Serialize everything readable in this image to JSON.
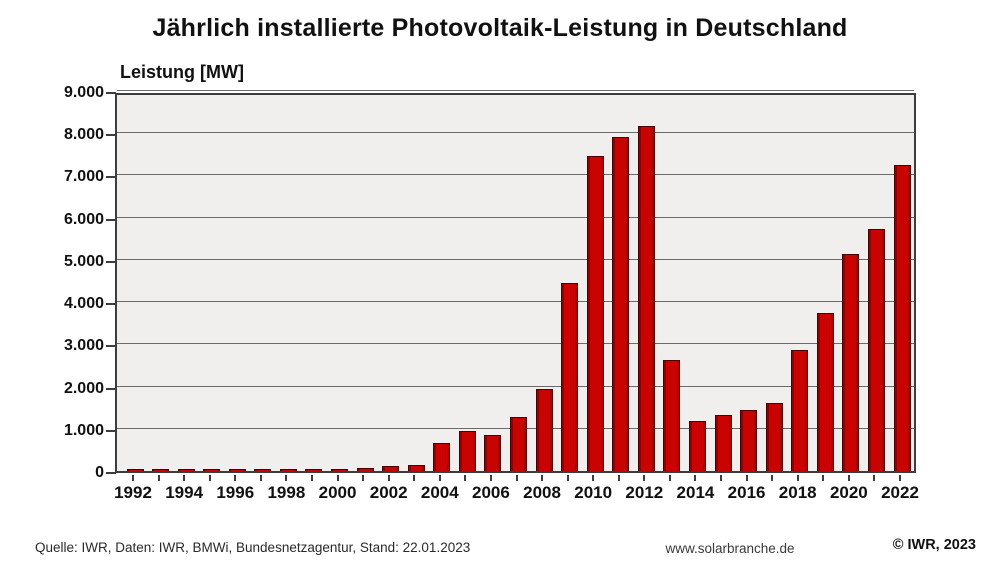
{
  "title": "Jährlich installierte Photovoltaik-Leistung in Deutschland",
  "axis_title": "Leistung [MW]",
  "footer": {
    "source": "Quelle: IWR, Daten: IWR, BMWi, Bundesnetzagentur,  Stand: 22.01.2023",
    "website": "www.solarbranche.de",
    "copyright": "© IWR, 2023"
  },
  "colors": {
    "bar_fill": "#c90202",
    "bar_border": "#4d0000",
    "plot_background": "#f0efed",
    "gridline": "#6a6a6a",
    "frame": "#3d3d3d",
    "page_background": "#ffffff",
    "text": "#111111"
  },
  "chart_data": {
    "type": "bar",
    "title": "Jährlich installierte Photovoltaik-Leistung in Deutschland",
    "xlabel": "",
    "ylabel": "Leistung [MW]",
    "ylim": [
      0,
      9000
    ],
    "ytick_step": 1000,
    "ytick_labels": [
      "0",
      "1.000",
      "2.000",
      "3.000",
      "4.000",
      "5.000",
      "6.000",
      "7.000",
      "8.000",
      "9.000"
    ],
    "grid": true,
    "legend": false,
    "x_label_every": 2,
    "categories": [
      1992,
      1993,
      1994,
      1995,
      1996,
      1997,
      1998,
      1999,
      2000,
      2001,
      2002,
      2003,
      2004,
      2005,
      2006,
      2007,
      2008,
      2009,
      2010,
      2011,
      2012,
      2013,
      2014,
      2015,
      2016,
      2017,
      2018,
      2019,
      2020,
      2021,
      2022
    ],
    "values": [
      5,
      5,
      8,
      10,
      12,
      15,
      12,
      15,
      45,
      80,
      110,
      150,
      670,
      950,
      850,
      1270,
      1950,
      4450,
      7450,
      7900,
      8160,
      2630,
      1190,
      1320,
      1450,
      1620,
      2870,
      3750,
      5150,
      5730,
      7250
    ]
  }
}
